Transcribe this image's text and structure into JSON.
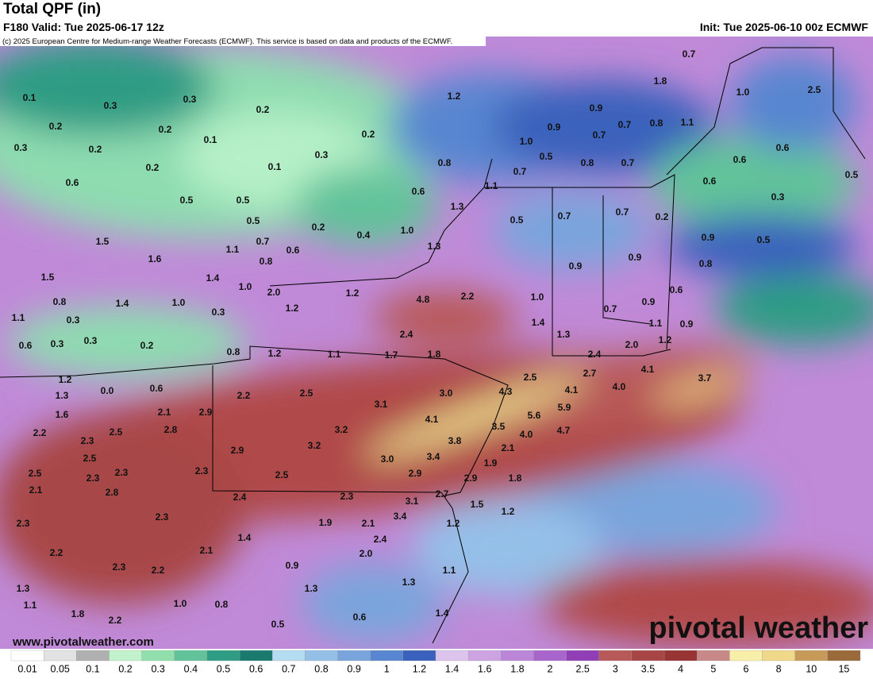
{
  "header": {
    "title": "Total QPF (in)",
    "valid": "F180 Valid: Tue 2025-06-17 12z",
    "init": "Init: Tue 2025-06-10 00z ECMWF",
    "credit": "(c) 2025 European Centre for Medium-range Weather Forecasts (ECMWF). This service is based on data and products of the ECMWF."
  },
  "map": {
    "labels": [
      "0.7",
      "1.8",
      "2.5",
      "1.0",
      "1.2",
      "0.9",
      "0.1",
      "0.3",
      "0.3",
      "0.2",
      "0.2",
      "0.9",
      "0.7",
      "0.8",
      "1.1",
      "0.2",
      "0.1",
      "0.2",
      "0.7",
      "1.0",
      "0.3",
      "0.2",
      "0.6",
      "0.3",
      "0.5",
      "0.8",
      "0.7",
      "0.6",
      "0.8",
      "0.2",
      "0.1",
      "0.7",
      "0.5",
      "0.6",
      "0.6",
      "1.1",
      "0.6",
      "0.5",
      "0.5",
      "0.3",
      "1.3",
      "0.7",
      "0.7",
      "0.5",
      "0.2",
      "0.5",
      "0.2",
      "1.0",
      "0.4",
      "0.9",
      "0.5",
      "1.5",
      "0.7",
      "1.3",
      "1.1",
      "0.6",
      "1.6",
      "0.8",
      "0.9",
      "0.9",
      "0.8",
      "1.5",
      "1.4",
      "1.0",
      "2.0",
      "1.2",
      "0.6",
      "4.8",
      "2.2",
      "1.0",
      "0.8",
      "1.4",
      "1.0",
      "1.2",
      "0.7",
      "0.9",
      "0.3",
      "1.1",
      "0.3",
      "1.4",
      "1.1",
      "0.9",
      "2.4",
      "1.3",
      "0.6",
      "0.3",
      "0.3",
      "0.2",
      "2.0",
      "1.2",
      "0.8",
      "1.2",
      "1.1",
      "1.7",
      "1.8",
      "2.4",
      "1.2",
      "4.1",
      "2.7",
      "2.5",
      "3.7",
      "4.0",
      "4.1",
      "0.0",
      "0.6",
      "1.3",
      "2.2",
      "2.5",
      "3.0",
      "4.3",
      "3.1",
      "1.6",
      "2.1",
      "2.9",
      "5.9",
      "5.6",
      "4.1",
      "2.2",
      "2.8",
      "3.2",
      "3.5",
      "4.7",
      "2.3",
      "2.5",
      "3.2",
      "3.8",
      "4.0",
      "2.9",
      "2.1",
      "2.5",
      "3.0",
      "3.4",
      "1.9",
      "2.3",
      "2.5",
      "2.3",
      "2.3",
      "2.5",
      "2.9",
      "2.9",
      "1.8",
      "2.1",
      "2.8",
      "2.4",
      "2.3",
      "2.7",
      "3.1",
      "1.5",
      "1.2",
      "2.3",
      "1.9",
      "3.4",
      "2.1",
      "1.2",
      "2.3",
      "1.4",
      "2.4",
      "2.2",
      "2.1",
      "2.0",
      "0.9",
      "2.3",
      "2.2",
      "1.1",
      "1.3",
      "1.3",
      "1.3",
      "1.1",
      "1.0",
      "0.8",
      "1.4",
      "0.6",
      "1.8",
      "2.2",
      "0.5"
    ]
  },
  "legend": {
    "labels": [
      "0.01",
      "0.05",
      "0.1",
      "0.2",
      "0.3",
      "0.4",
      "0.5",
      "0.6",
      "0.7",
      "0.8",
      "0.9",
      "1",
      "1.2",
      "1.4",
      "1.6",
      "1.8",
      "2",
      "2.5",
      "3",
      "3.5",
      "4",
      "5",
      "6",
      "8",
      "10",
      "15"
    ],
    "colors": [
      "#ffffff",
      "#e2e2e2",
      "#b0b0b0",
      "#c2f2cc",
      "#92dfae",
      "#62c39a",
      "#2f9c84",
      "#1a7a6e",
      "#b4dcf0",
      "#94c0e8",
      "#7aa4dc",
      "#5886d0",
      "#3a62bc",
      "#dcc4ec",
      "#cca4e2",
      "#bc86d8",
      "#a865cc",
      "#903fb6",
      "#b85858",
      "#a84646",
      "#983434",
      "#c88888",
      "#f8f0a8",
      "#f0d88a",
      "#c89a5a",
      "#9a6a3a"
    ]
  },
  "footer": {
    "website": "www.pivotalweather.com",
    "logo": "pivotal weather"
  }
}
